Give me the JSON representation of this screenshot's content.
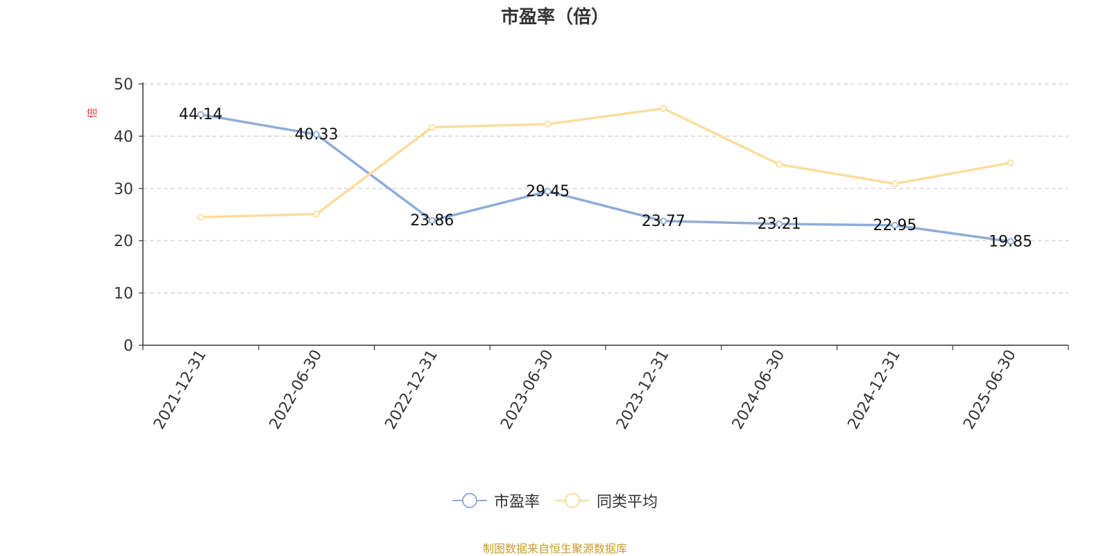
{
  "chart_data": {
    "type": "line",
    "title": "市盈率（倍）",
    "ylabel": "倍",
    "xlabel": "",
    "categories": [
      "2021-12-31",
      "2022-06-30",
      "2022-12-31",
      "2023-06-30",
      "2023-12-31",
      "2024-06-30",
      "2024-12-31",
      "2025-06-30"
    ],
    "ylim": [
      0,
      50
    ],
    "yticks": [
      0,
      10,
      20,
      30,
      40,
      50
    ],
    "grid": true,
    "legend_position": "bottom",
    "series": [
      {
        "name": "市盈率",
        "color": "#8eacd8",
        "values": [
          44.14,
          40.33,
          23.86,
          29.45,
          23.77,
          23.21,
          22.95,
          19.85
        ],
        "labels": [
          "44.14",
          "40.33",
          "23.86",
          "29.45",
          "23.77",
          "23.21",
          "22.95",
          "19.85"
        ]
      },
      {
        "name": "同类平均",
        "color": "#fbdc9c",
        "values": [
          24.5,
          25.1,
          41.7,
          42.3,
          45.3,
          34.6,
          30.9,
          34.9
        ]
      }
    ]
  },
  "source_note": "制图数据来自恒生聚源数据库"
}
